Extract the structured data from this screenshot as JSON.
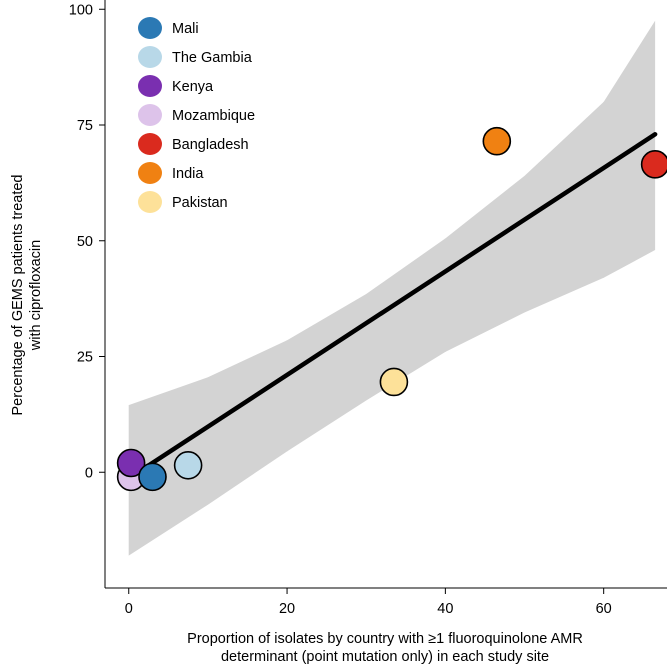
{
  "chart_data": {
    "type": "scatter",
    "title": "",
    "xlabel_lines": [
      "Proportion of isolates by country with ≥1 fluoroquinolone AMR",
      "determinant (point mutation only) in each study site"
    ],
    "ylabel_lines": [
      "Percentage of GEMS patients treated",
      "with ciprofloxacin"
    ],
    "xlim": [
      -3,
      68
    ],
    "ylim": [
      -25,
      102
    ],
    "xticks": [
      0,
      20,
      40,
      60
    ],
    "yticks": [
      0,
      25,
      50,
      75,
      100
    ],
    "xtick_labels": [
      "0",
      "20",
      "40",
      "60"
    ],
    "ytick_labels": [
      "0",
      "25",
      "50",
      "75",
      "100"
    ],
    "grid": true,
    "legend_position": "top-left",
    "series": [
      {
        "name": "Mali",
        "color": "#2b79b4",
        "x": 3.0,
        "y": -1.0
      },
      {
        "name": "The Gambia",
        "color": "#b8d8e8",
        "x": 7.5,
        "y": 1.5
      },
      {
        "name": "Kenya",
        "color": "#7a2fb0",
        "x": 0.3,
        "y": 2.0
      },
      {
        "name": "Mozambique",
        "color": "#ddc3ea",
        "x": 0.3,
        "y": -1.0
      },
      {
        "name": "Bangladesh",
        "color": "#da2a1e",
        "x": 66.5,
        "y": 66.5
      },
      {
        "name": "India",
        "color": "#f08112",
        "x": 46.5,
        "y": 71.5
      },
      {
        "name": "Pakistan",
        "color": "#fde199",
        "x": 33.5,
        "y": 19.5
      }
    ],
    "regression_line": {
      "x": [
        0.3,
        66.5
      ],
      "y": [
        -1.0,
        73.0
      ],
      "color": "#000000"
    },
    "confidence_band": {
      "color": "#d3d3d3",
      "x": [
        0,
        10,
        20,
        30,
        40,
        50,
        60,
        66.5
      ],
      "upper": [
        14.5,
        20.5,
        28.5,
        38.5,
        50.5,
        64.0,
        80.0,
        97.5
      ],
      "lower": [
        -18.0,
        -7.0,
        4.5,
        15.5,
        26.0,
        34.5,
        42.0,
        48.0
      ]
    }
  }
}
